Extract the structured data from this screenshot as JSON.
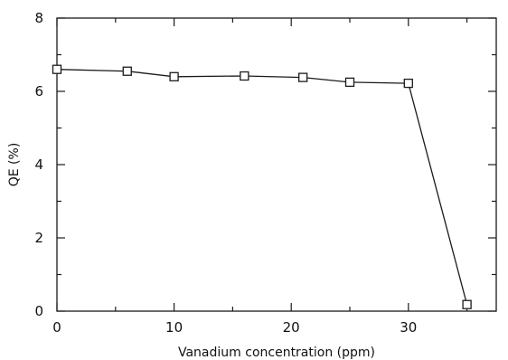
{
  "chart_data": {
    "type": "line",
    "title": "",
    "xlabel": "Vanadium concentration (ppm)",
    "ylabel": "QE (%)",
    "xlim": [
      0,
      37.5
    ],
    "ylim": [
      0,
      8
    ],
    "x_ticks": [
      0,
      10,
      20,
      30
    ],
    "x_minor_ticks": [
      5,
      15,
      25,
      35
    ],
    "y_ticks": [
      0,
      2,
      4,
      6,
      8
    ],
    "y_minor_ticks": [
      1,
      3,
      5,
      7
    ],
    "grid": false,
    "legend": "none",
    "marker": "open-square",
    "colors": {
      "line": "#1a1a1a",
      "marker_fill": "#ffffff"
    },
    "series": [
      {
        "x": [
          0,
          6,
          10,
          16,
          21,
          25,
          30,
          35
        ],
        "y": [
          6.6,
          6.55,
          6.4,
          6.42,
          6.38,
          6.25,
          6.22,
          0.18
        ]
      }
    ]
  }
}
